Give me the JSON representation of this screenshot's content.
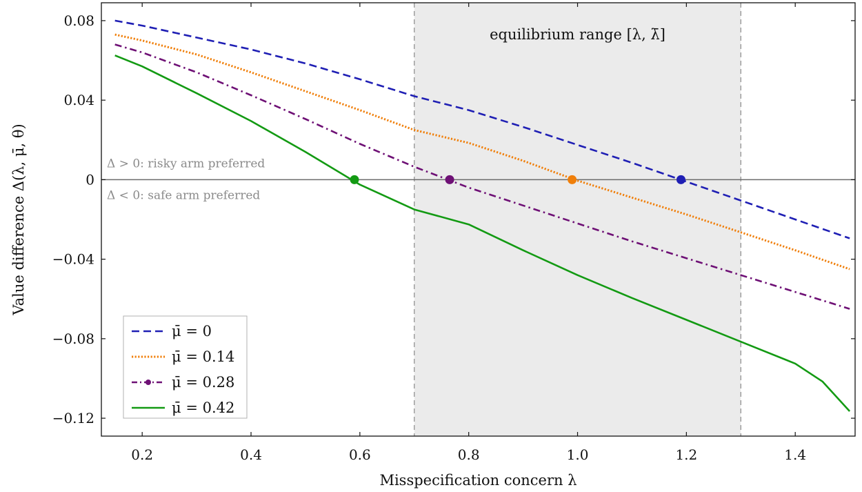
{
  "chart_data": {
    "type": "line",
    "title": "",
    "xlabel": "Misspecification concern λ",
    "ylabel": "Value difference Δ(λ, μ̄, θ)",
    "xlim": [
      0.125,
      1.51
    ],
    "ylim": [
      -0.129,
      0.089
    ],
    "xticks": [
      0.2,
      0.4,
      0.6,
      0.8,
      1.0,
      1.2,
      1.4
    ],
    "xtick_labels": [
      "0.2",
      "0.4",
      "0.6",
      "0.8",
      "1.0",
      "1.2",
      "1.4"
    ],
    "yticks": [
      0.08,
      0.04,
      0,
      -0.04,
      -0.08,
      -0.12
    ],
    "ytick_labels": [
      "0.08",
      "0.04",
      "0",
      "−0.04",
      "−0.08",
      "−0.12"
    ],
    "grid": false,
    "legend_position": "bottom-left",
    "shaded_region": {
      "x": [
        0.7,
        1.3
      ],
      "label": "equilibrium range [λ, λ̄]",
      "color": "#ebebeb"
    },
    "zero_line": {
      "y": 0,
      "label_above": "Δ > 0: risky arm preferred",
      "label_below": "Δ < 0: safe arm preferred"
    },
    "series": [
      {
        "name": "μ̄ = 0",
        "color": "#1f1fb4",
        "dash": "dashed",
        "x": [
          0.15,
          0.2,
          0.3,
          0.4,
          0.5,
          0.6,
          0.7,
          0.8,
          0.9,
          1.0,
          1.1,
          1.2,
          1.3,
          1.4,
          1.5
        ],
        "y": [
          0.08,
          0.0775,
          0.0715,
          0.0655,
          0.0585,
          0.0505,
          0.042,
          0.035,
          0.0265,
          0.0175,
          0.0085,
          -0.001,
          -0.0105,
          -0.02,
          -0.0295
        ],
        "root": 1.19
      },
      {
        "name": "μ̄ = 0.14",
        "color": "#f07f0a",
        "dash": "dotted",
        "x": [
          0.15,
          0.2,
          0.3,
          0.4,
          0.5,
          0.6,
          0.7,
          0.8,
          0.9,
          1.0,
          1.1,
          1.2,
          1.3,
          1.4,
          1.5
        ],
        "y": [
          0.073,
          0.07,
          0.063,
          0.054,
          0.0445,
          0.035,
          0.025,
          0.0185,
          0.0095,
          -0.0005,
          -0.009,
          -0.0175,
          -0.0265,
          -0.0355,
          -0.045
        ],
        "root": 0.99
      },
      {
        "name": "μ̄ = 0.28",
        "color": "#6e1075",
        "dash": "dashdot",
        "x": [
          0.15,
          0.2,
          0.3,
          0.4,
          0.5,
          0.6,
          0.7,
          0.8,
          0.9,
          1.0,
          1.1,
          1.2,
          1.3,
          1.4,
          1.5
        ],
        "y": [
          0.068,
          0.064,
          0.054,
          0.0425,
          0.0305,
          0.018,
          0.0065,
          -0.004,
          -0.013,
          -0.022,
          -0.031,
          -0.0395,
          -0.048,
          -0.0565,
          -0.065
        ],
        "root": 0.765
      },
      {
        "name": "μ̄ = 0.42",
        "color": "#139a13",
        "dash": "solid",
        "x": [
          0.15,
          0.2,
          0.3,
          0.4,
          0.5,
          0.6,
          0.7,
          0.8,
          0.9,
          1.0,
          1.1,
          1.2,
          1.3,
          1.4,
          1.45,
          1.5
        ],
        "y": [
          0.0625,
          0.057,
          0.0435,
          0.0295,
          0.014,
          -0.0025,
          -0.015,
          -0.0225,
          -0.0355,
          -0.048,
          -0.0595,
          -0.0705,
          -0.0815,
          -0.0925,
          -0.1015,
          -0.1165
        ],
        "root": 0.59
      }
    ]
  }
}
